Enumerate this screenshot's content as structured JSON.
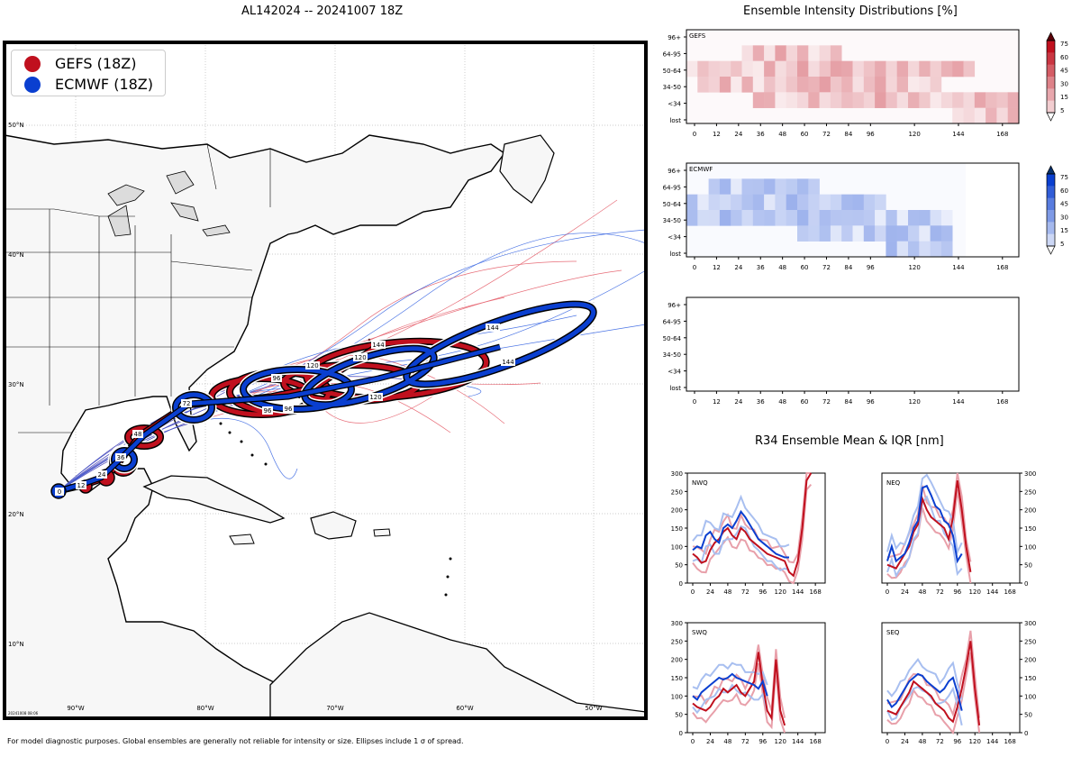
{
  "titles": {
    "map": "AL142024 -- 20241007 18Z",
    "intensity": "Ensemble Intensity Distributions [%]",
    "r34": "R34 Ensemble Mean & IQR [nm]"
  },
  "legend": [
    {
      "label": "GEFS (18Z)",
      "color": "#c0101e"
    },
    {
      "label": "ECMWF (18Z)",
      "color": "#0a3fd0"
    }
  ],
  "map": {
    "lat_labels": [
      "50°N",
      "40°N",
      "30°N",
      "20°N",
      "10°N"
    ],
    "lon_labels": [
      "90°W",
      "80°W",
      "70°W",
      "60°W",
      "50°W"
    ],
    "stamp": "20241008 08:06",
    "gefs_hours": [
      "0",
      "12",
      "24",
      "36",
      "48",
      "72",
      "96",
      "96",
      "120",
      "120",
      "144"
    ],
    "ecmwf_hours": [
      "0",
      "12",
      "24",
      "36",
      "72",
      "96",
      "120",
      "120",
      "144",
      "144"
    ]
  },
  "footnote": "For model diagnostic purposes. Global ensembles are generally not reliable for intensity or size. Ellipses include 1 σ of spread.",
  "chart_data": [
    {
      "type": "heatmap",
      "title": "GEFS",
      "categories_y": [
        "96+",
        "64-95",
        "50-64",
        "34-50",
        "<34",
        "lost"
      ],
      "x_ticks": [
        "0",
        "12",
        "24",
        "36",
        "48",
        "60",
        "72",
        "84",
        "96",
        "120",
        "144",
        "168"
      ],
      "colorbar_ticks": [
        "75",
        "60",
        "45",
        "30",
        "15",
        "5"
      ],
      "color": "#c0101e"
    },
    {
      "type": "heatmap",
      "title": "ECMWF",
      "categories_y": [
        "96+",
        "64-95",
        "50-64",
        "34-50",
        "<34",
        "lost"
      ],
      "x_ticks": [
        "0",
        "12",
        "24",
        "36",
        "48",
        "60",
        "72",
        "84",
        "96",
        "120",
        "144",
        "168"
      ],
      "colorbar_ticks": [
        "75",
        "60",
        "45",
        "30",
        "15",
        "5"
      ],
      "color": "#0a3fd0"
    },
    {
      "type": "heatmap",
      "title": "",
      "categories_y": [
        "96+",
        "64-95",
        "50-64",
        "34-50",
        "<34",
        "lost"
      ],
      "x_ticks": [
        "0",
        "12",
        "24",
        "36",
        "48",
        "60",
        "72",
        "84",
        "96",
        "120",
        "144",
        "168"
      ]
    },
    {
      "type": "line",
      "quadrants": [
        "NWQ",
        "NEQ",
        "SWQ",
        "SEQ"
      ],
      "x_ticks": [
        "0",
        "24",
        "48",
        "72",
        "96",
        "120",
        "144",
        "168"
      ],
      "y_ticks": [
        "300",
        "250",
        "200",
        "150",
        "100",
        "50",
        "0"
      ],
      "ylim": [
        0,
        300
      ],
      "xlim": [
        0,
        174
      ],
      "series": [
        {
          "name": "GEFS",
          "color": "#c0101e"
        },
        {
          "name": "ECMWF",
          "color": "#0a3fd0"
        }
      ]
    }
  ]
}
